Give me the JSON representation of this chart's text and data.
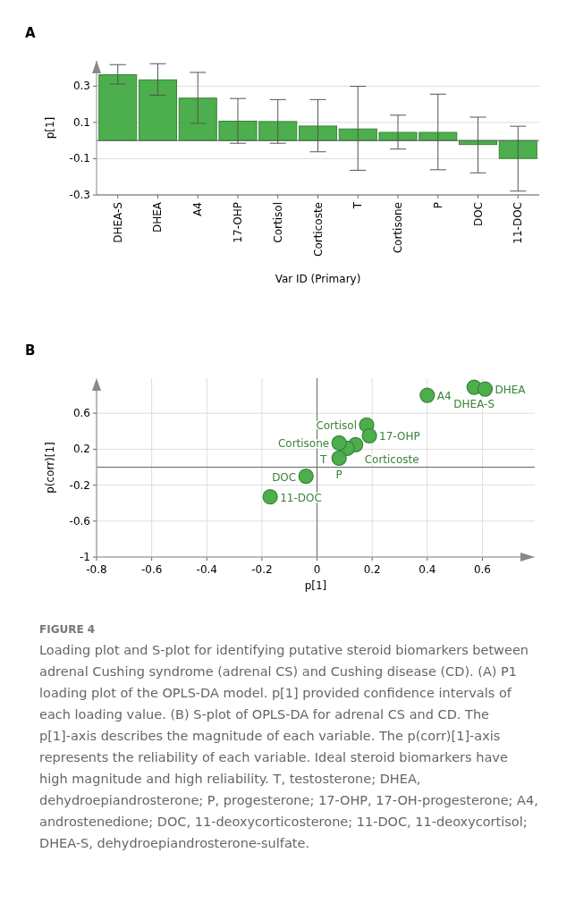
{
  "chart_data": [
    {
      "type": "bar",
      "title": "A",
      "xlabel": "Var ID (Primary)",
      "ylabel": "p[1]",
      "categories": [
        "DHEA-S",
        "DHEA",
        "A4",
        "17-OHP",
        "Cortisol",
        "Corticoste",
        "T",
        "Cortisone",
        "P",
        "DOC",
        "11-DOC"
      ],
      "values": [
        0.363,
        0.335,
        0.234,
        0.107,
        0.105,
        0.08,
        0.064,
        0.045,
        0.045,
        -0.022,
        -0.099
      ],
      "errors": [
        [
          0.312,
          0.419
        ],
        [
          0.25,
          0.424
        ],
        [
          0.095,
          0.376
        ],
        [
          -0.015,
          0.232
        ],
        [
          -0.015,
          0.226
        ],
        [
          -0.062,
          0.226
        ],
        [
          -0.164,
          0.299
        ],
        [
          -0.047,
          0.14
        ],
        [
          -0.161,
          0.256
        ],
        [
          -0.178,
          0.129
        ],
        [
          -0.279,
          0.079
        ]
      ],
      "color": "#4cae4c",
      "ylim": [
        -0.3,
        0.44
      ],
      "yticks": [
        0.3,
        0.1,
        -0.1,
        -0.3
      ],
      "grid": "y",
      "ref_lines": [
        {
          "axis": "y",
          "value": 0,
          "color": "#666666"
        }
      ]
    },
    {
      "type": "scatter",
      "title": "B",
      "xlabel": "p[1]",
      "ylabel": "p(corr)[1]",
      "color": "#4cae4c",
      "marker": "circle",
      "x": [
        0.57,
        0.61,
        0.4,
        0.18,
        0.19,
        0.14,
        0.11,
        0.08,
        0.08,
        -0.04,
        -0.17
      ],
      "values": [
        0.89,
        0.87,
        0.8,
        0.47,
        0.35,
        0.25,
        0.21,
        0.27,
        0.1,
        -0.1,
        -0.33
      ],
      "xlim": [
        -0.8,
        0.79
      ],
      "xticks": [
        -0.8,
        -0.6,
        -0.4,
        -0.2,
        0,
        0.2,
        0.4,
        0.6
      ],
      "ylim": [
        -1,
        0.99
      ],
      "yticks": [
        0.6,
        0.2,
        -0.2,
        -0.6,
        -1
      ],
      "grid": true,
      "ref_lines": [
        {
          "axis": "x",
          "value": 0,
          "color": "#666666"
        },
        {
          "axis": "y",
          "value": 0,
          "color": "#666666"
        }
      ],
      "annotations": [
        {
          "text": "DHEA-S",
          "x": 0.57,
          "y": 0.89
        },
        {
          "text": "DHEA",
          "x": 0.61,
          "y": 0.87
        },
        {
          "text": "A4",
          "x": 0.4,
          "y": 0.8
        },
        {
          "text": "Cortisol",
          "x": 0.18,
          "y": 0.47
        },
        {
          "text": "17-OHP",
          "x": 0.19,
          "y": 0.35
        },
        {
          "text": "Corticoste",
          "x": 0.14,
          "y": 0.25
        },
        {
          "text": "T",
          "x": 0.11,
          "y": 0.21
        },
        {
          "text": "Cortisone",
          "x": 0.08,
          "y": 0.27
        },
        {
          "text": "P",
          "x": 0.08,
          "y": 0.1
        },
        {
          "text": "DOC",
          "x": -0.04,
          "y": -0.1
        },
        {
          "text": "11-DOC",
          "x": -0.17,
          "y": -0.33
        },
        "FIGURE 4",
        "Loading plot and S-plot for identifying putative steroid biomarkers between adrenal Cushing syndrome (adrenal CS) and Cushing disease (CD). (A) P1 loading plot of the OPLS-DA model. p[1] provided confidence intervals of each loading value. (B) S-plot of OPLS-DA for adrenal CS and CD. The p[1]-axis describes the magnitude of each variable. The p(corr)[1]-axis represents the reliability of each variable. Ideal steroid biomarkers have high magnitude and high reliability. T, testosterone; DHEA, dehydroepiandrosterone; P, progesterone; 17-OHP, 17-OH-progesterone; A4, androstenedione; DOC, 11-deoxycorticosterone; 11-DOC, 11-deoxycortisol; DHEA-S, dehydroepiandrosterone-sulfate."
      ]
    }
  ]
}
